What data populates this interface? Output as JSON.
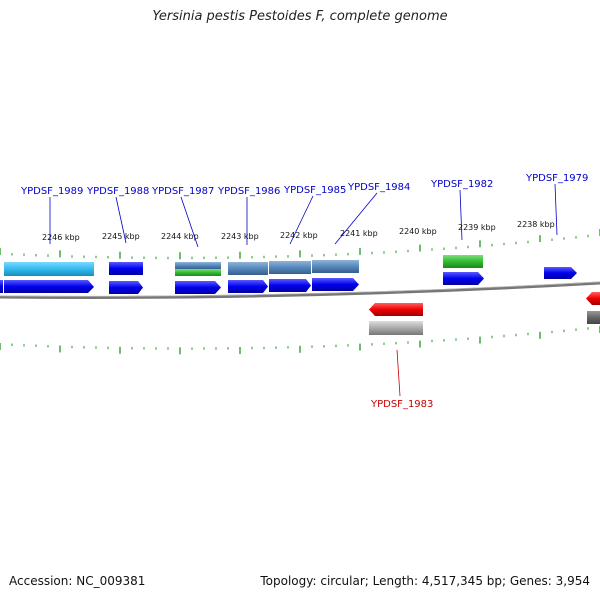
{
  "title": "Yersinia pestis Pestoides F, complete genome",
  "footer": {
    "accession": "Accession: NC_009381",
    "summary": "Topology: circular; Length: 4,517,345 bp; Genes: 3,954"
  },
  "colors": {
    "forward_gene": "#0000ee",
    "reverse_gene": "#ee0000",
    "cds_cyan": "#33bbee",
    "cds_steel": "#5588bb",
    "cds_green": "#33bb33",
    "cds_grey": "#aaaaaa",
    "tick_green": "#229922",
    "backbone": "#777777"
  },
  "scale_labels": [
    "2246 kbp",
    "2245 kbp",
    "2244 kbp",
    "2243 kbp",
    "2242 kbp",
    "2241 kbp",
    "2240 kbp",
    "2239 kbp",
    "2238 kbp"
  ],
  "genes_forward": [
    "YPDSF_1989",
    "YPDSF_1988",
    "YPDSF_1987",
    "YPDSF_1986",
    "YPDSF_1985",
    "YPDSF_1984",
    "YPDSF_1982",
    "YPDSF_1979"
  ],
  "genes_reverse": [
    "YPDSF_1983"
  ]
}
